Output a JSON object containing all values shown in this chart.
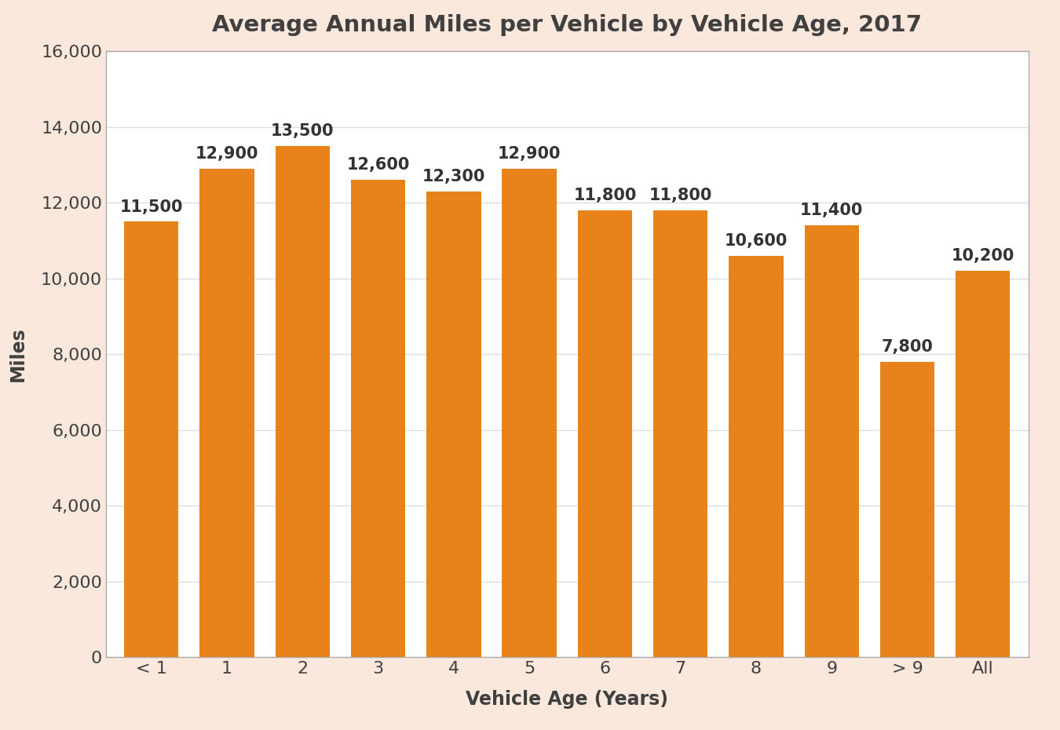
{
  "title": "Average Annual Miles per Vehicle by Vehicle Age, 2017",
  "categories": [
    "< 1",
    "1",
    "2",
    "3",
    "4",
    "5",
    "6",
    "7",
    "8",
    "9",
    "> 9",
    "All"
  ],
  "values": [
    11500,
    12900,
    13500,
    12600,
    12300,
    12900,
    11800,
    11800,
    10600,
    11400,
    7800,
    10200
  ],
  "bar_color": "#E8821A",
  "background_color": "#FAE8DC",
  "plot_background": "#FFFFFF",
  "title_color": "#404040",
  "axis_label_color": "#404040",
  "tick_label_color": "#404040",
  "value_label_color": "#333333",
  "spine_color": "#AAAAAA",
  "grid_color": "#DDDDDD",
  "xlabel": "Vehicle Age (Years)",
  "ylabel": "Miles",
  "ylim": [
    0,
    16000
  ],
  "ytick_step": 2000,
  "title_fontsize": 21,
  "axis_label_fontsize": 17,
  "tick_fontsize": 16,
  "value_label_fontsize": 15,
  "bar_width": 0.72
}
